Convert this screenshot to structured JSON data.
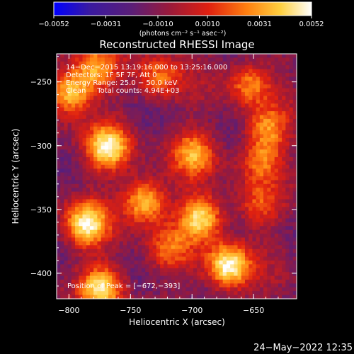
{
  "chart_data": {
    "type": "heatmap",
    "title": "Reconstructed RHESSI Image",
    "xlabel": "Heliocentric X (arcsec)",
    "ylabel": "Heliocentric Y (arcsec)",
    "xlim": [
      -810,
      -615
    ],
    "ylim": [
      -420,
      -228
    ],
    "x_ticks": [
      -800,
      -750,
      -700,
      -650
    ],
    "y_ticks": [
      -250,
      -300,
      -350,
      -400
    ],
    "colorbar": {
      "range": [
        -0.0052,
        0.0052
      ],
      "tick_values": [
        -0.0052,
        -0.0031,
        -0.001,
        0.001,
        0.0031,
        0.0052
      ],
      "tick_labels": [
        "−0.0052",
        "−0.0031",
        "−0.0010",
        "0.0010",
        "0.0031",
        "0.0052"
      ],
      "units": "(photons cm⁻² s⁻¹ asec⁻²)",
      "colormap": [
        "#0000ff",
        "#3a1aa0",
        "#5a1e78",
        "#9a1a3a",
        "#e02010",
        "#ff8010",
        "#ffd040",
        "#ffffff"
      ]
    },
    "info_lines": [
      "14−Dec−2015 13:19:16.000 to 13:25:16.000",
      "Detectors: 1F 5F 7F, Att 0",
      "Energy Range: 25.0 − 50.0 keV",
      "Clean     Total counts: 4.94E+03"
    ],
    "peak_label": "Position of Peak = [−672,−393]",
    "sources": [
      {
        "x": -770,
        "y": -300,
        "value": 0.0045
      },
      {
        "x": -740,
        "y": -342,
        "value": 0.004
      },
      {
        "x": -694,
        "y": -355,
        "value": 0.0045
      },
      {
        "x": -787,
        "y": -360,
        "value": 0.0046
      },
      {
        "x": -672,
        "y": -393,
        "value": 0.0052
      },
      {
        "x": -800,
        "y": -257,
        "value": 0.004
      },
      {
        "x": -775,
        "y": -410,
        "value": 0.0042
      },
      {
        "x": -780,
        "y": -238,
        "value": 0.0025
      },
      {
        "x": -728,
        "y": -245,
        "value": 0.002
      },
      {
        "x": -700,
        "y": -305,
        "value": 0.0028
      },
      {
        "x": -655,
        "y": -250,
        "value": 0.0022
      },
      {
        "x": -640,
        "y": -285,
        "value": 0.0022
      },
      {
        "x": -645,
        "y": -310,
        "value": 0.0018
      },
      {
        "x": -720,
        "y": -380,
        "value": 0.0016
      },
      {
        "x": -648,
        "y": -345,
        "value": 0.0012
      }
    ]
  },
  "timestamp": "24−May−2022 12:35"
}
